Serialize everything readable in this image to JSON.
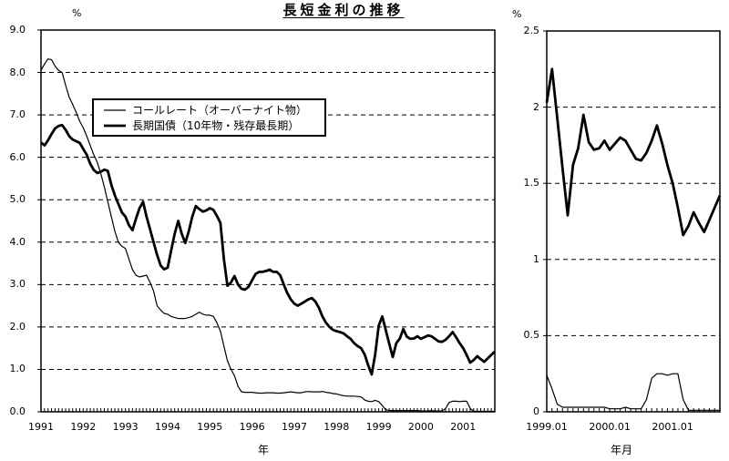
{
  "title": "長短金利の推移",
  "colors": {
    "foreground": "#000000",
    "background": "#ffffff"
  },
  "axes": {
    "left_unit": "%",
    "right_unit": "%",
    "left_xlabel": "年",
    "right_xlabel": "年月"
  },
  "legend": {
    "items": [
      {
        "label": "コールレート（オーバーナイト物）",
        "line": "thin"
      },
      {
        "label": "長期国債（10年物・残存最長期）",
        "line": "thick"
      }
    ]
  },
  "chart_data": [
    {
      "type": "line",
      "panel": "left",
      "title": "長短金利の推移",
      "unit": "%",
      "xlabel": "年",
      "x_start": "1991.01",
      "x_end": "2001.10",
      "x_frequency": "monthly",
      "ylim": [
        0,
        9
      ],
      "grid": "horizontal-dashed",
      "legend_position": "top-left-inside",
      "yticks": [
        9,
        8,
        7,
        6,
        5,
        4,
        3,
        2,
        1,
        0
      ],
      "ytick_labels": [
        "9.0",
        "8.0",
        "7.0",
        "6.0",
        "5.0",
        "4.0",
        "3.0",
        "2.0",
        "1.0",
        "0.0"
      ],
      "xtick_labels": [
        "1991",
        "1992",
        "1993",
        "1994",
        "1995",
        "1996",
        "1997",
        "1998",
        "1999",
        "2000",
        "2001"
      ],
      "series": [
        {
          "name": "コールレート（オーバーナイト物）",
          "style": "thin",
          "values": [
            8.05,
            8.2,
            8.32,
            8.3,
            8.15,
            8.05,
            8.0,
            7.7,
            7.42,
            7.25,
            7.06,
            6.85,
            6.7,
            6.5,
            6.28,
            6.06,
            5.88,
            5.62,
            5.3,
            4.95,
            4.6,
            4.25,
            4.0,
            3.9,
            3.85,
            3.6,
            3.35,
            3.22,
            3.18,
            3.2,
            3.22,
            3.05,
            2.85,
            2.5,
            2.4,
            2.32,
            2.3,
            2.25,
            2.22,
            2.2,
            2.2,
            2.2,
            2.22,
            2.25,
            2.3,
            2.35,
            2.3,
            2.28,
            2.28,
            2.25,
            2.1,
            1.9,
            1.55,
            1.2,
            1.0,
            0.85,
            0.6,
            0.47,
            0.46,
            0.46,
            0.46,
            0.45,
            0.44,
            0.44,
            0.45,
            0.45,
            0.45,
            0.44,
            0.44,
            0.45,
            0.46,
            0.47,
            0.46,
            0.45,
            0.45,
            0.47,
            0.48,
            0.47,
            0.47,
            0.47,
            0.48,
            0.46,
            0.45,
            0.43,
            0.42,
            0.4,
            0.38,
            0.37,
            0.37,
            0.37,
            0.36,
            0.35,
            0.28,
            0.25,
            0.24,
            0.27,
            0.24,
            0.15,
            0.05,
            0.03,
            0.03,
            0.03,
            0.03,
            0.03,
            0.03,
            0.03,
            0.03,
            0.03,
            0.02,
            0.02,
            0.02,
            0.03,
            0.02,
            0.02,
            0.02,
            0.08,
            0.22,
            0.25,
            0.25,
            0.24,
            0.25,
            0.25,
            0.08,
            0.01,
            0.01,
            0.01,
            0.01,
            0.01,
            0.01,
            0.01
          ]
        },
        {
          "name": "長期国債（10年物・残存最長期）",
          "style": "thick",
          "values": [
            6.35,
            6.28,
            6.4,
            6.55,
            6.68,
            6.74,
            6.76,
            6.65,
            6.5,
            6.42,
            6.38,
            6.34,
            6.2,
            6.06,
            5.85,
            5.7,
            5.63,
            5.66,
            5.71,
            5.68,
            5.35,
            5.1,
            4.9,
            4.7,
            4.6,
            4.4,
            4.28,
            4.55,
            4.8,
            4.95,
            4.6,
            4.3,
            4.0,
            3.7,
            3.45,
            3.36,
            3.4,
            3.8,
            4.2,
            4.5,
            4.2,
            3.98,
            4.25,
            4.6,
            4.85,
            4.78,
            4.72,
            4.75,
            4.8,
            4.76,
            4.62,
            4.45,
            3.6,
            2.97,
            3.05,
            3.2,
            3.0,
            2.9,
            2.88,
            2.95,
            3.1,
            3.25,
            3.3,
            3.3,
            3.32,
            3.35,
            3.3,
            3.3,
            3.22,
            3.0,
            2.8,
            2.65,
            2.55,
            2.5,
            2.55,
            2.6,
            2.65,
            2.68,
            2.6,
            2.45,
            2.25,
            2.1,
            2.0,
            1.93,
            1.9,
            1.88,
            1.85,
            1.78,
            1.72,
            1.62,
            1.55,
            1.5,
            1.35,
            1.1,
            0.88,
            1.35,
            2.03,
            2.25,
            1.93,
            1.6,
            1.29,
            1.62,
            1.73,
            1.95,
            1.77,
            1.72,
            1.73,
            1.78,
            1.72,
            1.76,
            1.8,
            1.78,
            1.72,
            1.66,
            1.65,
            1.7,
            1.78,
            1.88,
            1.76,
            1.62,
            1.5,
            1.34,
            1.16,
            1.22,
            1.31,
            1.24,
            1.18,
            1.26,
            1.34,
            1.42
          ]
        }
      ]
    },
    {
      "type": "line",
      "panel": "right",
      "title": "長短金利の推移",
      "unit": "%",
      "xlabel": "年月",
      "x_start": "1999.01",
      "x_end": "2001.10",
      "x_frequency": "monthly",
      "ylim": [
        0,
        2.5
      ],
      "grid": "horizontal-dashed",
      "legend_position": "none",
      "yticks": [
        2.5,
        2,
        1.5,
        1,
        0.5,
        0
      ],
      "ytick_labels": [
        "2.5",
        "2",
        "1.5",
        "1",
        "0.5",
        "0"
      ],
      "xtick_labels": [
        "1999.01",
        "2000.01",
        "2001.01"
      ],
      "series": [
        {
          "name": "コールレート（オーバーナイト物）",
          "style": "thin",
          "values": [
            0.24,
            0.15,
            0.05,
            0.03,
            0.03,
            0.03,
            0.03,
            0.03,
            0.03,
            0.03,
            0.03,
            0.03,
            0.02,
            0.02,
            0.02,
            0.03,
            0.02,
            0.02,
            0.02,
            0.08,
            0.22,
            0.25,
            0.25,
            0.24,
            0.25,
            0.25,
            0.08,
            0.01,
            0.01,
            0.01,
            0.01,
            0.01,
            0.01,
            0.01
          ]
        },
        {
          "name": "長期国債（10年物・残存最長期）",
          "style": "thick",
          "values": [
            2.03,
            2.25,
            1.93,
            1.6,
            1.29,
            1.62,
            1.73,
            1.95,
            1.77,
            1.72,
            1.73,
            1.78,
            1.72,
            1.76,
            1.8,
            1.78,
            1.72,
            1.66,
            1.65,
            1.7,
            1.78,
            1.88,
            1.76,
            1.62,
            1.5,
            1.34,
            1.16,
            1.22,
            1.31,
            1.24,
            1.18,
            1.26,
            1.34,
            1.42
          ]
        }
      ]
    }
  ]
}
